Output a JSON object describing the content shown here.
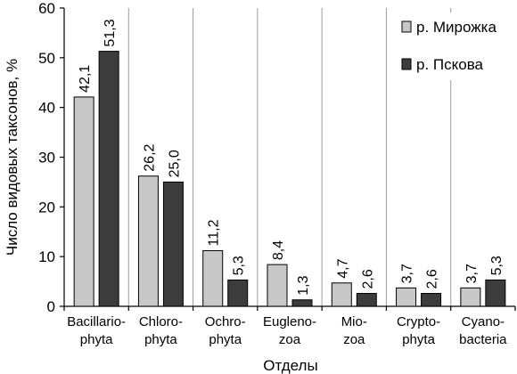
{
  "chart_data": {
    "type": "bar",
    "title": "",
    "xlabel": "Отделы",
    "ylabel": "Число видовых таксонов, %",
    "ylim": [
      0,
      60
    ],
    "yticks": [
      0,
      10,
      20,
      30,
      40,
      50,
      60
    ],
    "grid": "vertical separators between categories",
    "legend_position": "top-right",
    "categories": [
      [
        "Bacillario-",
        "phyta"
      ],
      [
        "Chloro-",
        "phyta"
      ],
      [
        "Ochro-",
        "phyta"
      ],
      [
        "Eugleno-",
        "zoa"
      ],
      [
        "Mio-",
        "zoa"
      ],
      [
        "Crypto-",
        "phyta"
      ],
      [
        "Cyano-",
        "bacteria"
      ]
    ],
    "series": [
      {
        "name": "р. Мирожка",
        "color": "#c8c8c8",
        "values": [
          42.1,
          26.2,
          11.2,
          8.4,
          4.7,
          3.7,
          3.7
        ],
        "labels": [
          "42,1",
          "26,2",
          "11,2",
          "8,4",
          "4,7",
          "3,7",
          "3,7"
        ]
      },
      {
        "name": "р. Пскова",
        "color": "#3c3c3c",
        "values": [
          51.3,
          25.0,
          5.3,
          1.3,
          2.6,
          2.6,
          5.3
        ],
        "labels": [
          "51,3",
          "25,0",
          "5,3",
          "1,3",
          "2,6",
          "2,6",
          "5,3"
        ]
      }
    ]
  }
}
